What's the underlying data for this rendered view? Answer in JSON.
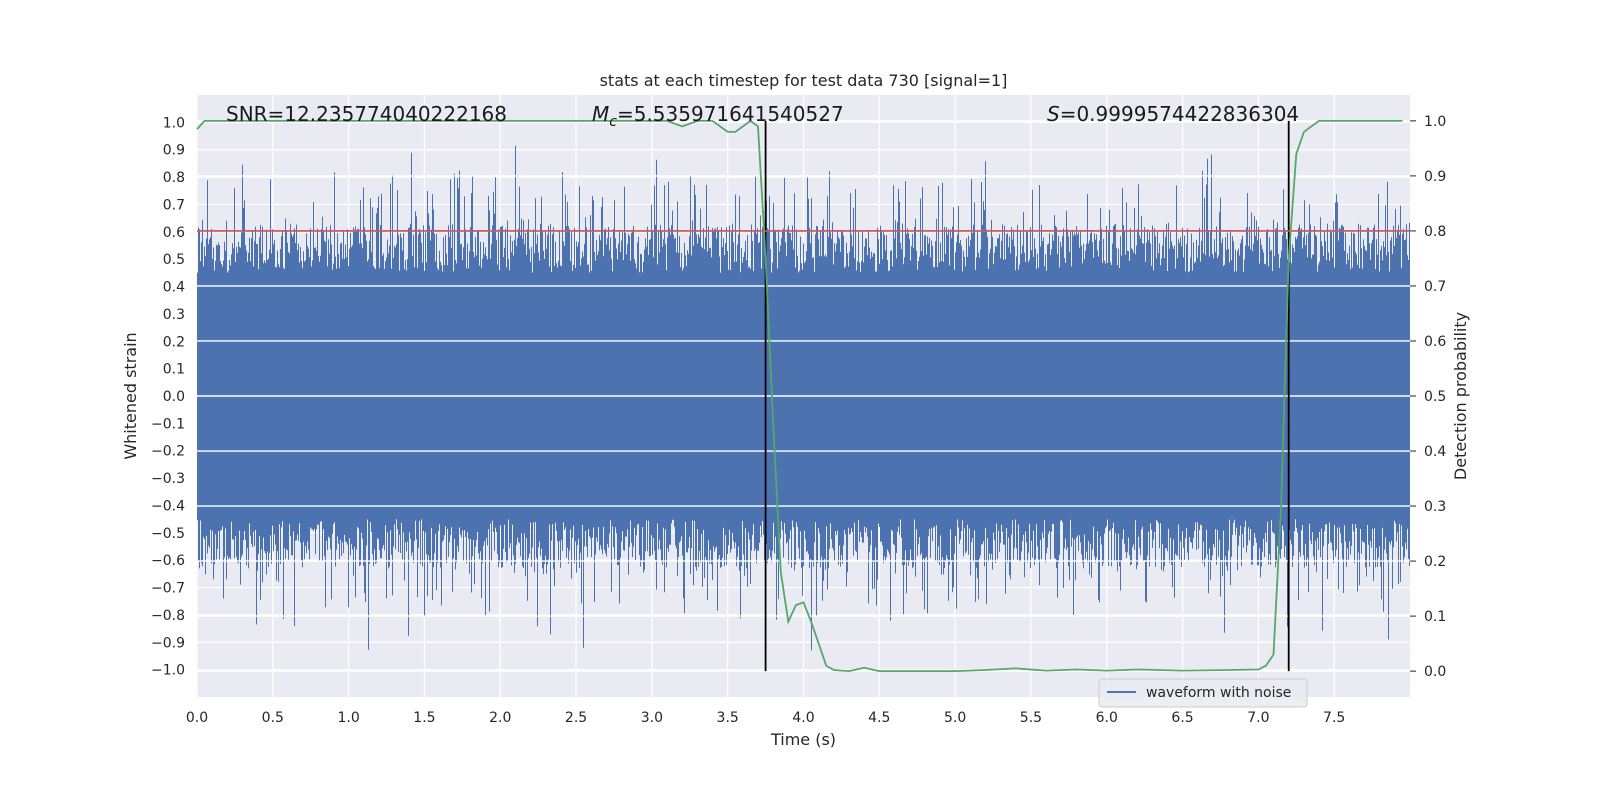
{
  "chart_data": {
    "type": "line",
    "title": "stats at each timestep for test data 730 [signal=1]",
    "xlabel": "Time (s)",
    "ylabel": "Whitened strain",
    "y2label": "Detection probability",
    "xlim": [
      0,
      8
    ],
    "ylim": [
      -1.1,
      1.1
    ],
    "y2lim": [
      -0.047,
      1.047
    ],
    "xticks": [
      0.0,
      0.5,
      1.0,
      1.5,
      2.0,
      2.5,
      3.0,
      3.5,
      4.0,
      4.5,
      5.0,
      5.5,
      6.0,
      6.5,
      7.0,
      7.5
    ],
    "xtick_labels": [
      "0.0",
      "0.5",
      "1.0",
      "1.5",
      "2.0",
      "2.5",
      "3.0",
      "3.5",
      "4.0",
      "4.5",
      "5.0",
      "5.5",
      "6.0",
      "6.5",
      "7.0",
      "7.5"
    ],
    "yticks": [
      1.0,
      0.9,
      0.8,
      0.7,
      0.6,
      0.5,
      0.4,
      0.3,
      0.2,
      0.1,
      0.0,
      -0.1,
      -0.2,
      -0.3,
      -0.4,
      -0.5,
      -0.6,
      -0.7,
      -0.8,
      -0.9,
      -1.0
    ],
    "ytick_labels": [
      "1.0",
      "0.9",
      "0.8",
      "0.7",
      "0.6",
      "0.5",
      "0.4",
      "0.3",
      "0.2",
      "0.1",
      "0.0",
      "−0.1",
      "−0.2",
      "−0.3",
      "−0.4",
      "−0.5",
      "−0.6",
      "−0.7",
      "−0.8",
      "−0.9",
      "−1.0"
    ],
    "y2ticks": [
      1.0,
      0.9,
      0.8,
      0.7,
      0.6,
      0.5,
      0.4,
      0.3,
      0.2,
      0.1,
      0.0
    ],
    "y2tick_labels": [
      "1.0",
      "0.9",
      "0.8",
      "0.7",
      "0.6",
      "0.5",
      "0.4",
      "0.3",
      "0.2",
      "0.1",
      "0.0"
    ],
    "grid": true,
    "annotations": {
      "snr": "SNR=12.235774040222168",
      "mc_symbol": "M",
      "mc_sub": "c",
      "mc_value": "=5.535971641540527",
      "s_symbol": "S",
      "s_value": "=0.9999574422836304"
    },
    "vertical_lines_x": [
      3.75,
      7.2
    ],
    "threshold_y2": 0.8,
    "legend": {
      "position": "lower-right",
      "entries": [
        "waveform with noise"
      ]
    },
    "waveform": {
      "name": "waveform with noise",
      "color": "#4c72b0",
      "x_range": [
        0,
        8
      ],
      "core_range": [
        -0.45,
        0.45
      ],
      "peak_range": [
        -1.0,
        0.93
      ]
    },
    "probability": {
      "color": "#55a868",
      "x": [
        0.0,
        0.05,
        0.1,
        3.1,
        3.2,
        3.3,
        3.4,
        3.5,
        3.55,
        3.6,
        3.65,
        3.7,
        3.75,
        3.8,
        3.85,
        3.9,
        3.95,
        4.0,
        4.05,
        4.1,
        4.15,
        4.2,
        4.3,
        4.4,
        4.5,
        5.0,
        5.2,
        5.4,
        5.6,
        5.8,
        6.0,
        6.2,
        6.5,
        6.8,
        7.0,
        7.05,
        7.1,
        7.15,
        7.2,
        7.25,
        7.3,
        7.35,
        7.4,
        7.5,
        7.95
      ],
      "y": [
        0.985,
        1.0,
        1.0,
        1.0,
        0.99,
        1.0,
        1.0,
        0.98,
        0.98,
        0.99,
        1.0,
        0.99,
        0.75,
        0.45,
        0.18,
        0.09,
        0.12,
        0.125,
        0.09,
        0.05,
        0.01,
        0.002,
        0.0,
        0.006,
        0.0,
        0.0,
        0.002,
        0.005,
        0.001,
        0.003,
        0.001,
        0.003,
        0.001,
        0.002,
        0.003,
        0.01,
        0.03,
        0.3,
        0.75,
        0.94,
        0.98,
        0.99,
        1.0,
        1.0,
        1.0
      ]
    }
  }
}
